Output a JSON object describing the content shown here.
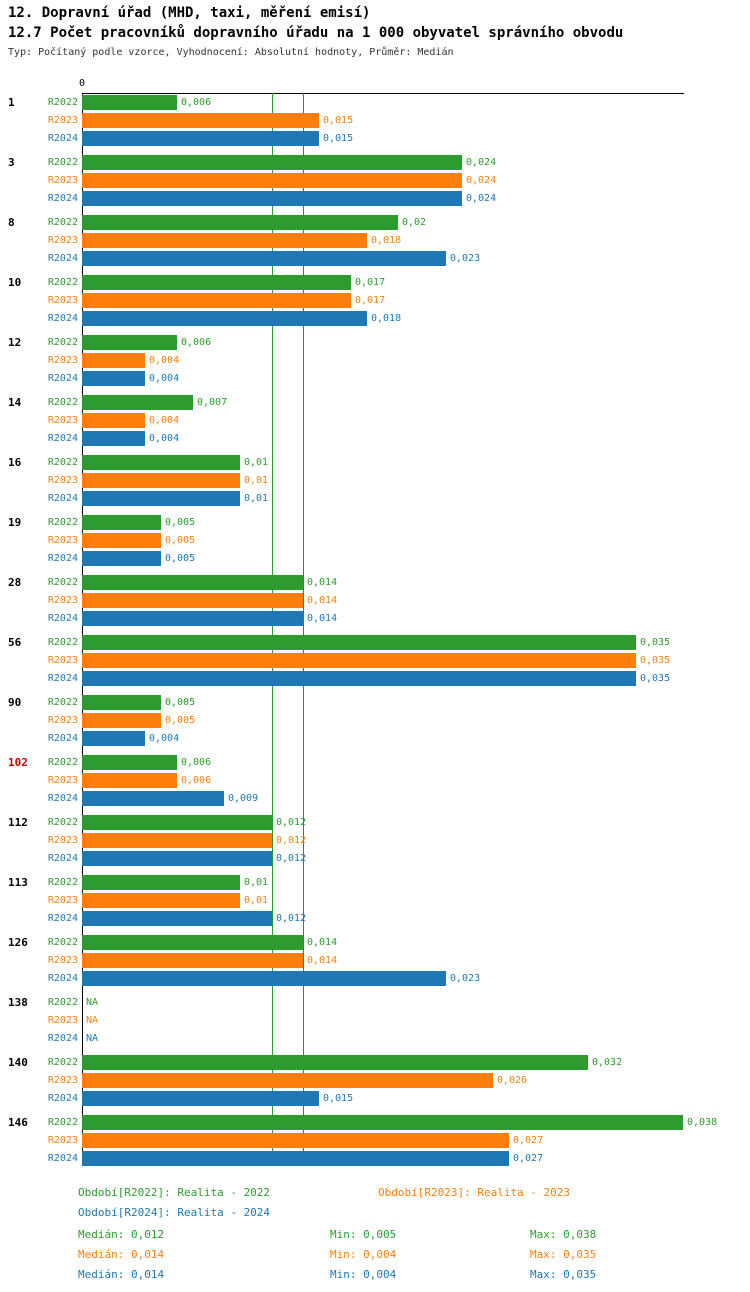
{
  "chart_data": {
    "type": "bar",
    "orientation": "horizontal",
    "title": "12. Dopravní úřad (MHD, taxi, měření emisí)",
    "subtitle": "12.7 Počet pracovníků dopravního úřadu na 1 000 obyvatel správního obvodu",
    "meta": "Typ: Počítaný podle vzorce, Vyhodnocení: Absolutní hodnoty, Průměr: Medián",
    "x_axis": {
      "zero_label": "0",
      "min": 0,
      "max": 0.038
    },
    "series": [
      "R2022",
      "R2023",
      "R2024"
    ],
    "series_colors": [
      "#2e9b2e",
      "#ff7f0e",
      "#1f77b4"
    ],
    "highlight_color": "#cc0000",
    "na_label": "NA",
    "grid": false,
    "reference_lines": [
      {
        "value": 0.012,
        "color": "#2e9b2e"
      },
      {
        "value": 0.014,
        "color": "#666666"
      }
    ],
    "groups": [
      {
        "category": "1",
        "highlight": false,
        "values": [
          0.006,
          0.015,
          0.015
        ],
        "value_labels": [
          "0,006",
          "0,015",
          "0,015"
        ]
      },
      {
        "category": "3",
        "highlight": false,
        "values": [
          0.024,
          0.024,
          0.024
        ],
        "value_labels": [
          "0,024",
          "0,024",
          "0,024"
        ]
      },
      {
        "category": "8",
        "highlight": false,
        "values": [
          0.02,
          0.018,
          0.023
        ],
        "value_labels": [
          "0,02",
          "0,018",
          "0,023"
        ]
      },
      {
        "category": "10",
        "highlight": false,
        "values": [
          0.017,
          0.017,
          0.018
        ],
        "value_labels": [
          "0,017",
          "0,017",
          "0,018"
        ]
      },
      {
        "category": "12",
        "highlight": false,
        "values": [
          0.006,
          0.004,
          0.004
        ],
        "value_labels": [
          "0,006",
          "0,004",
          "0,004"
        ]
      },
      {
        "category": "14",
        "highlight": false,
        "values": [
          0.007,
          0.004,
          0.004
        ],
        "value_labels": [
          "0,007",
          "0,004",
          "0,004"
        ]
      },
      {
        "category": "16",
        "highlight": false,
        "values": [
          0.01,
          0.01,
          0.01
        ],
        "value_labels": [
          "0,01",
          "0,01",
          "0,01"
        ]
      },
      {
        "category": "19",
        "highlight": false,
        "values": [
          0.005,
          0.005,
          0.005
        ],
        "value_labels": [
          "0,005",
          "0,005",
          "0,005"
        ]
      },
      {
        "category": "28",
        "highlight": false,
        "values": [
          0.014,
          0.014,
          0.014
        ],
        "value_labels": [
          "0,014",
          "0,014",
          "0,014"
        ]
      },
      {
        "category": "56",
        "highlight": false,
        "values": [
          0.035,
          0.035,
          0.035
        ],
        "value_labels": [
          "0,035",
          "0,035",
          "0,035"
        ]
      },
      {
        "category": "90",
        "highlight": false,
        "values": [
          0.005,
          0.005,
          0.004
        ],
        "value_labels": [
          "0,005",
          "0,005",
          "0,004"
        ]
      },
      {
        "category": "102",
        "highlight": true,
        "values": [
          0.006,
          0.006,
          0.009
        ],
        "value_labels": [
          "0,006",
          "0,006",
          "0,009"
        ]
      },
      {
        "category": "112",
        "highlight": false,
        "values": [
          0.012,
          0.012,
          0.012
        ],
        "value_labels": [
          "0,012",
          "0,012",
          "0,012"
        ]
      },
      {
        "category": "113",
        "highlight": false,
        "values": [
          0.01,
          0.01,
          0.012
        ],
        "value_labels": [
          "0,01",
          "0,01",
          "0,012"
        ]
      },
      {
        "category": "126",
        "highlight": false,
        "values": [
          0.014,
          0.014,
          0.023
        ],
        "value_labels": [
          "0,014",
          "0,014",
          "0,023"
        ]
      },
      {
        "category": "138",
        "highlight": false,
        "values": [
          null,
          null,
          null
        ],
        "value_labels": [
          "NA",
          "NA",
          "NA"
        ]
      },
      {
        "category": "140",
        "highlight": false,
        "values": [
          0.032,
          0.026,
          0.015
        ],
        "value_labels": [
          "0,032",
          "0,026",
          "0,015"
        ]
      },
      {
        "category": "146",
        "highlight": false,
        "values": [
          0.038,
          0.027,
          0.027
        ],
        "value_labels": [
          "0,038",
          "0,027",
          "0,027"
        ]
      }
    ]
  },
  "legend": {
    "items": [
      {
        "label": "Období[R2022]: Realita - 2022",
        "color": "#2e9b2e"
      },
      {
        "label": "Období[R2023]: Realita - 2023",
        "color": "#ff7f0e"
      },
      {
        "label": "Období[R2024]: Realita - 2024",
        "color": "#1f77b4"
      }
    ]
  },
  "stats": {
    "rows": [
      {
        "median": "Medián: 0,012",
        "min": "Min: 0,005",
        "max": "Max: 0,038",
        "color": "#2e9b2e"
      },
      {
        "median": "Medián: 0,014",
        "min": "Min: 0,004",
        "max": "Max: 0,035",
        "color": "#ff7f0e"
      },
      {
        "median": "Medián: 0,014",
        "min": "Min: 0,004",
        "max": "Max: 0,035",
        "color": "#1f77b4"
      }
    ]
  }
}
